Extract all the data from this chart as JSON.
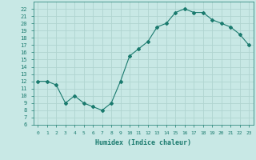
{
  "xlabel": "Humidex (Indice chaleur)",
  "x": [
    0,
    1,
    2,
    3,
    4,
    5,
    6,
    7,
    8,
    9,
    10,
    11,
    12,
    13,
    14,
    15,
    16,
    17,
    18,
    19,
    20,
    21,
    22,
    23
  ],
  "y": [
    12,
    12,
    11.5,
    9,
    10,
    9,
    8.5,
    8,
    9,
    12,
    15.5,
    16.5,
    17.5,
    19.5,
    20,
    21.5,
    22,
    21.5,
    21.5,
    20.5,
    20,
    19.5,
    18.5,
    17
  ],
  "line_color": "#1a7a6e",
  "bg_color": "#c8e8e5",
  "grid_color": "#b0d4d0",
  "text_color": "#1a7a6e",
  "ylim": [
    6,
    23
  ],
  "xlim": [
    -0.5,
    23.5
  ],
  "yticks": [
    6,
    7,
    8,
    9,
    10,
    11,
    12,
    13,
    14,
    15,
    16,
    17,
    18,
    19,
    20,
    21,
    22
  ],
  "xticks": [
    0,
    1,
    2,
    3,
    4,
    5,
    6,
    7,
    8,
    9,
    10,
    11,
    12,
    13,
    14,
    15,
    16,
    17,
    18,
    19,
    20,
    21,
    22,
    23
  ],
  "xtick_labels": [
    "0",
    "1",
    "2",
    "3",
    "4",
    "5",
    "6",
    "7",
    "8",
    "9",
    "10",
    "11",
    "12",
    "13",
    "14",
    "15",
    "16",
    "17",
    "18",
    "19",
    "20",
    "21",
    "22",
    "23"
  ]
}
